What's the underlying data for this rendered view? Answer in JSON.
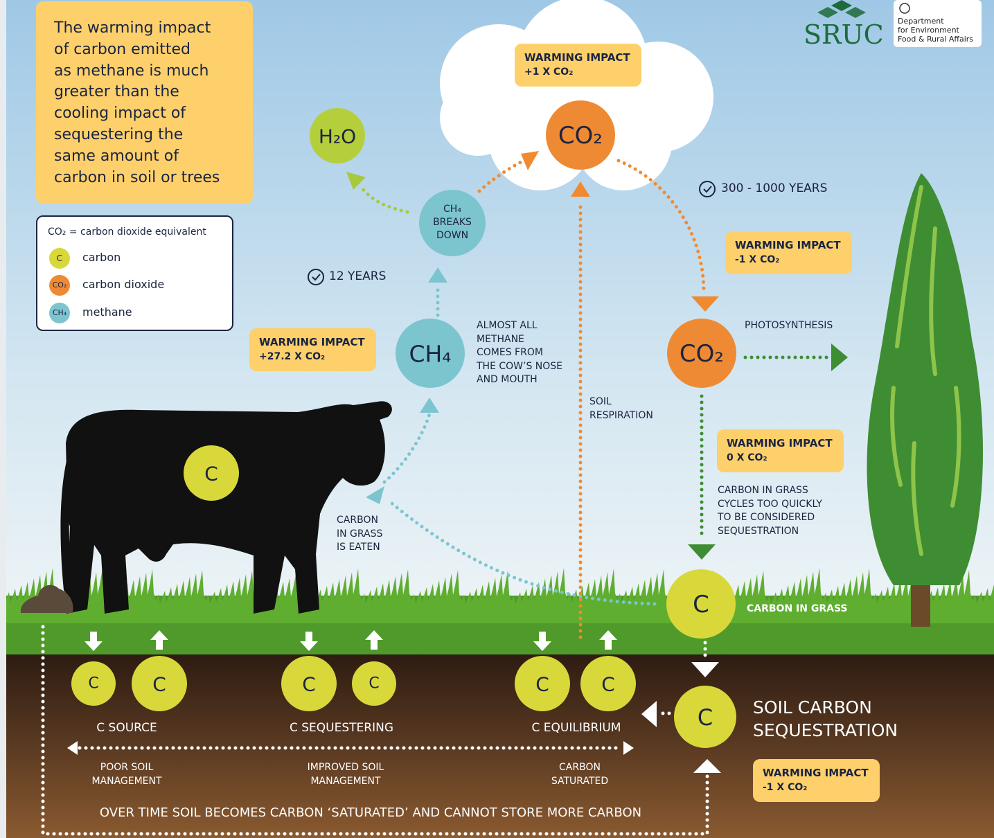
{
  "intro": [
    "The warming impact",
    "of carbon emitted",
    "as methane is much",
    "greater than the",
    "cooling impact of",
    "sequestering the",
    "same amount of",
    "carbon in soil or trees"
  ],
  "legend": {
    "title": "CO₂ = carbon dioxide equivalent",
    "items": [
      {
        "symbol": "C",
        "label": "carbon"
      },
      {
        "symbol": "CO₂",
        "label": "carbon dioxide"
      },
      {
        "symbol": "CH₄",
        "label": "methane"
      }
    ]
  },
  "logos": {
    "sruc": "SRUC",
    "defra": [
      "Department",
      "for Environment",
      "Food & Rural Affairs"
    ]
  },
  "nodes": {
    "h2o": "H₂O",
    "co2_top": "CO₂",
    "ch4_breaks": [
      "CH₄",
      "BREAKS",
      "DOWN"
    ],
    "ch4": "CH₄",
    "co2_right": "CO₂",
    "cow_carbon": "C",
    "grass_carbon": "C",
    "soil_carbon": "C"
  },
  "timers": {
    "methane": "12 YEARS",
    "co2": "300 - 1000 YEARS"
  },
  "impacts": [
    {
      "title": "WARMING IMPACT",
      "value": "+1 X CO₂"
    },
    {
      "title": "WARMING IMPACT",
      "value": "+27.2 X CO₂"
    },
    {
      "title": "WARMING IMPACT",
      "value": "-1 X CO₂"
    },
    {
      "title": "WARMING IMPACT",
      "value": "0 X CO₂"
    },
    {
      "title": "WARMING IMPACT",
      "value": "-1 X CO₂"
    }
  ],
  "annotations": {
    "methane_source": [
      "ALMOST ALL",
      "METHANE",
      "COMES FROM",
      "THE COW’S NOSE",
      "AND MOUTH"
    ],
    "soil_respiration": [
      "SOIL",
      "RESPIRATION"
    ],
    "photosynthesis": "PHOTOSYNTHESIS",
    "grass_cycle": [
      "CARBON IN GRASS",
      "CYCLES TOO QUICKLY",
      "TO BE CONSIDERED",
      "SEQUESTRATION"
    ],
    "grass_eaten": [
      "CARBON",
      "IN GRASS",
      "IS EATEN"
    ],
    "carbon_in_grass": "CARBON IN GRASS",
    "soil_sequestration": [
      "SOIL CARBON",
      "SEQUESTRATION"
    ]
  },
  "soil_stages": [
    {
      "circles": [
        "C",
        "C"
      ],
      "label": "C SOURCE",
      "management": [
        "POOR SOIL",
        "MANAGEMENT"
      ]
    },
    {
      "circles": [
        "C",
        "C"
      ],
      "label": "C SEQUESTERING",
      "management": [
        "IMPROVED SOIL",
        "MANAGEMENT"
      ]
    },
    {
      "circles": [
        "C",
        "C"
      ],
      "label": "C EQUILIBRIUM",
      "management": [
        "CARBON",
        "SATURATED"
      ]
    }
  ],
  "footer": "OVER TIME SOIL BECOMES CARBON ‘SATURATED’ AND CANNOT STORE MORE CARBON"
}
